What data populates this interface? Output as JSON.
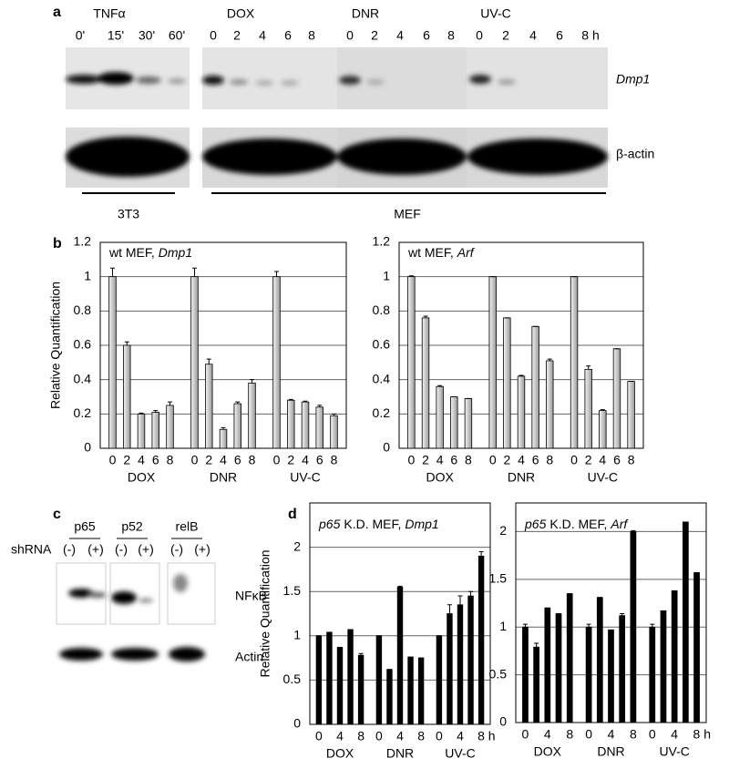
{
  "letters": [
    "a",
    "b",
    "c",
    "d"
  ],
  "blot_a": {
    "treatments": [
      {
        "name": "TNFα",
        "times": [
          "0'",
          "15'",
          "30'",
          "60'"
        ]
      },
      {
        "name": "DOX",
        "times": [
          "0",
          "2",
          "4",
          "6",
          "8"
        ]
      },
      {
        "name": "DNR",
        "times": [
          "0",
          "2",
          "4",
          "6",
          "8"
        ]
      },
      {
        "name": "UV-C",
        "times": [
          "0",
          "2",
          "4",
          "6",
          "8 h"
        ]
      }
    ],
    "genes": [
      "Dmp1",
      "β-actin"
    ],
    "cells": [
      "3T3",
      "MEF"
    ]
  },
  "blot_c": {
    "proteins": [
      "p65",
      "p52",
      "relB"
    ],
    "shrna": "shRNA",
    "conditions": [
      "(-)",
      "(+)"
    ],
    "rows": [
      "NFκB",
      "Actin"
    ]
  },
  "chart_data": [
    {
      "type": "bar",
      "color": "#d0d0d0",
      "annotation": [
        {
          "text": "wt MEF,",
          "italic": false
        },
        {
          "text": "Dmp1",
          "italic": true
        }
      ],
      "y_label": "Relative Quantification",
      "categories": [
        "0",
        "2",
        "4",
        "6",
        "8",
        "0",
        "2",
        "4",
        "6",
        "8",
        "0",
        "2",
        "4",
        "6",
        "8"
      ],
      "groups": [
        "DOX",
        "DNR",
        "UV-C"
      ],
      "values": [
        1,
        0.6,
        0.2,
        0.21,
        0.25,
        1,
        0.49,
        0.11,
        0.26,
        0.38,
        1,
        0.28,
        0.27,
        0.24,
        0.19
      ],
      "errors": [
        0.05,
        0.02,
        0.005,
        0.01,
        0.02,
        0.05,
        0.03,
        0.01,
        0.01,
        0.02,
        0.03,
        0.005,
        0.005,
        0.01,
        0.01
      ],
      "ylim": [
        0,
        1.2
      ],
      "yticks": [
        0,
        0.2,
        0.4,
        0.6,
        0.8,
        1,
        1.2
      ],
      "grid": true
    },
    {
      "type": "bar",
      "color": "#d0d0d0",
      "annotation": [
        {
          "text": "wt MEF,",
          "italic": false
        },
        {
          "text": "Arf",
          "italic": true
        }
      ],
      "categories": [
        "0",
        "2",
        "4",
        "6",
        "8",
        "0",
        "2",
        "4",
        "6",
        "8",
        "0",
        "2",
        "4",
        "6",
        "8"
      ],
      "groups": [
        "DOX",
        "DNR",
        "UV-C"
      ],
      "values": [
        1,
        0.76,
        0.36,
        0.3,
        0.29,
        1,
        0.76,
        0.42,
        0.71,
        0.51,
        1,
        0.46,
        0.22,
        0.58,
        0.39
      ],
      "errors": [
        0.005,
        0.01,
        0.005,
        0,
        0,
        0,
        0,
        0.005,
        0,
        0.01,
        0,
        0.02,
        0.005,
        0,
        0
      ],
      "ylim": [
        0,
        1.2
      ],
      "yticks": [
        0,
        0.2,
        0.4,
        0.6,
        0.8,
        1,
        1.2
      ],
      "grid": true
    },
    {
      "type": "bar",
      "color": "#000000",
      "annotation": [
        {
          "text": "p65",
          "italic": true
        },
        {
          "text": "K.D. MEF,",
          "italic": false
        },
        {
          "text": "Dmp1",
          "italic": true
        }
      ],
      "y_label": "Relative Quantification",
      "categories": [
        "0",
        null,
        "4",
        null,
        "8",
        "0",
        null,
        "4",
        null,
        "8",
        "0",
        null,
        "4",
        null,
        "8 h"
      ],
      "groups": [
        "DOX",
        "DNR",
        "UV-C"
      ],
      "values": [
        1,
        1.04,
        0.87,
        1.07,
        0.78,
        1,
        0.62,
        1.55,
        0.76,
        0.75,
        1,
        1.25,
        1.35,
        1.45,
        1.9
      ],
      "errors": [
        0,
        0,
        0,
        0,
        0.02,
        0,
        0,
        0.01,
        0,
        0,
        0,
        0.1,
        0.1,
        0.05,
        0.05
      ],
      "ylim": [
        0,
        2.5
      ],
      "yticks": [
        0,
        0.5,
        1,
        1.5,
        2
      ],
      "grid": true
    },
    {
      "type": "bar",
      "color": "#000000",
      "annotation": [
        {
          "text": "p65",
          "italic": true
        },
        {
          "text": "K.D. MEF,",
          "italic": false
        },
        {
          "text": "Arf",
          "italic": true
        }
      ],
      "categories": [
        "0",
        null,
        "4",
        null,
        "8",
        "0",
        null,
        "4",
        null,
        "8",
        "0",
        null,
        "4",
        null,
        "8 h"
      ],
      "groups": [
        "DOX",
        "DNR",
        "UV-C"
      ],
      "values": [
        1,
        0.79,
        1.2,
        1.14,
        1.35,
        1,
        1.31,
        0.97,
        1.12,
        2,
        1,
        1.17,
        1.38,
        2.1,
        1.57
      ],
      "errors": [
        0.03,
        0.04,
        0,
        0,
        0,
        0.03,
        0,
        0,
        0.02,
        0.01,
        0.03,
        0,
        0,
        0,
        0
      ],
      "ylim": [
        0,
        2.3
      ],
      "yticks": [
        0,
        0.5,
        1,
        1.5,
        2
      ],
      "grid": true
    }
  ]
}
